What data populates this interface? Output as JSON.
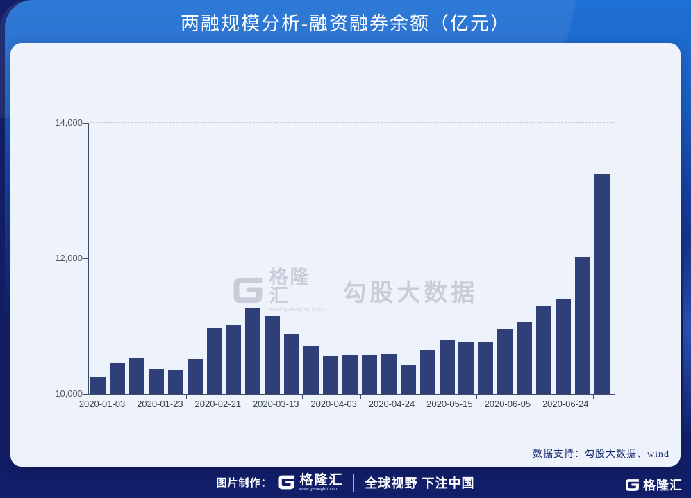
{
  "page": {
    "title": "两融规模分析-融资融券余额（亿元）"
  },
  "watermark": {
    "brand": "格隆汇",
    "url": "www.gelonghui.com",
    "name": "勾股大数据"
  },
  "card": {
    "data_support": "数据支持：勾股大数据、wind"
  },
  "footer": {
    "label": "图片制作：",
    "brand": "格隆汇",
    "url": "www.gelonghui.com",
    "slogan": "全球视野 下注中国",
    "corner_brand": "格隆汇"
  },
  "colors": {
    "bar": "#2f3f78",
    "card_bg": "#eef3fb",
    "header_blue": "#1e70d4",
    "page_navy": "#121f68",
    "axis": "#414e68",
    "grid_dash": "#c8c8c8",
    "watermark": "#c7cdd9",
    "title_text": "#ffffff",
    "data_support_text": "#13266d"
  },
  "chart_data": {
    "type": "bar",
    "title": "两融规模分析-融资融券余额（亿元）",
    "xlabel": "",
    "ylabel": "",
    "ylim": [
      10000,
      14000
    ],
    "yticks": [
      10000,
      12000,
      14000
    ],
    "ytick_labels": [
      "10,000",
      "12,000",
      "14,000"
    ],
    "grid": "horizontal-dashed",
    "legend": "none",
    "n_bars": 27,
    "values": [
      10250,
      10450,
      10530,
      10370,
      10350,
      10510,
      10970,
      11020,
      11260,
      11150,
      10880,
      10710,
      10550,
      10570,
      10570,
      10600,
      10420,
      10650,
      10790,
      10770,
      10770,
      10950,
      11070,
      11300,
      11410,
      12020,
      13240
    ],
    "x_tick_labels": [
      "2020-01-03",
      "2020-01-23",
      "2020-02-21",
      "2020-03-13",
      "2020-04-03",
      "2020-04-24",
      "2020-05-15",
      "2020-06-05",
      "2020-06-24"
    ],
    "x_tick_bar_index": [
      0,
      3,
      6,
      9,
      12,
      15,
      18,
      21,
      24
    ]
  }
}
